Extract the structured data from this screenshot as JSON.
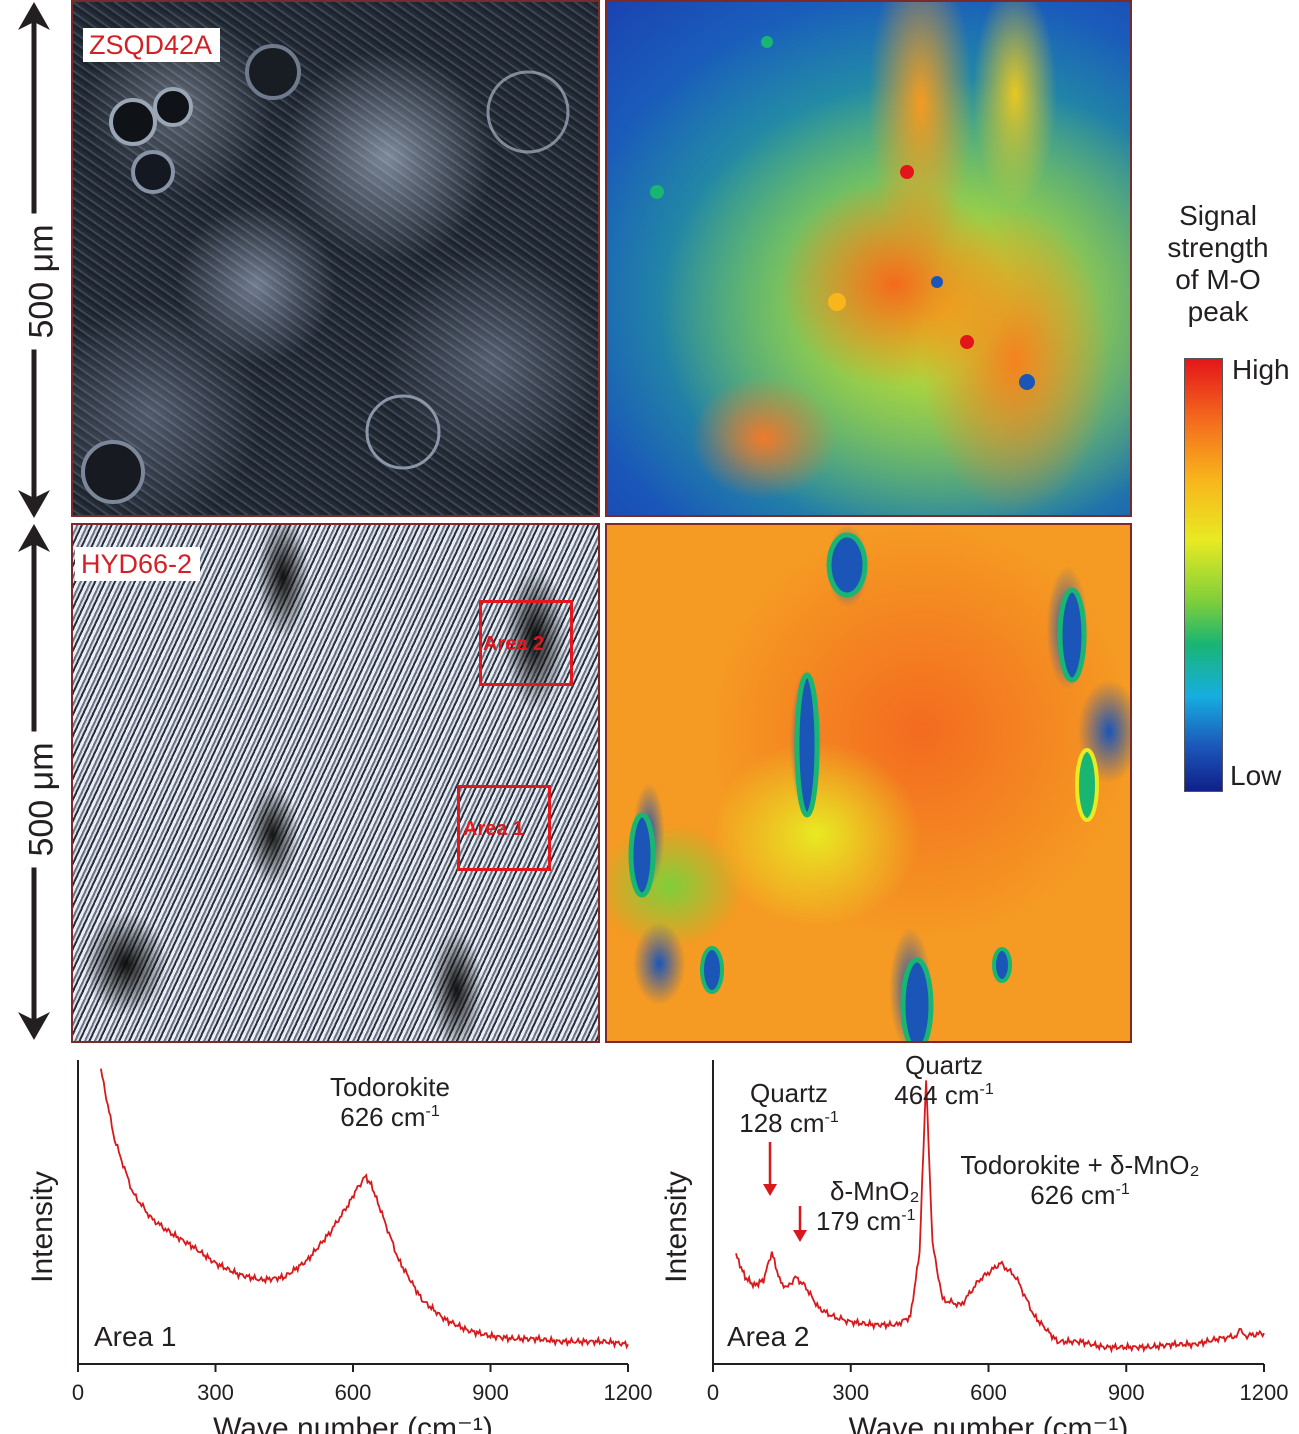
{
  "top_row": {
    "sample_label": "ZSQD42A",
    "scale_label": "500 μm"
  },
  "bottom_row": {
    "sample_label": "HYD66-2",
    "scale_label": "500 μm",
    "area1_label": "Area 1",
    "area2_label": "Area 2"
  },
  "legend": {
    "title_lines": [
      "Signal",
      "strength",
      "of M-O",
      "peak"
    ],
    "high_label": "High",
    "low_label": "Low",
    "colors": [
      "#e4151a",
      "#f46a1d",
      "#f8b51c",
      "#e8ea22",
      "#7fcf3a",
      "#19b573",
      "#16aee0",
      "#1b55b8",
      "#10208a"
    ]
  },
  "chart_data": [
    {
      "type": "line",
      "panel_label": "Area 1",
      "xlabel": "Wave number (cm⁻¹)",
      "ylabel": "Intensity",
      "xlim": [
        0,
        1200
      ],
      "xticks": [
        0,
        300,
        600,
        900,
        1200
      ],
      "line_color": "#d7191c",
      "x": [
        50,
        80,
        120,
        160,
        200,
        250,
        300,
        350,
        400,
        450,
        500,
        550,
        590,
        610,
        626,
        640,
        660,
        700,
        750,
        800,
        850,
        900,
        950,
        1000,
        1050,
        1100,
        1150,
        1200
      ],
      "y": [
        1.0,
        0.75,
        0.56,
        0.47,
        0.42,
        0.37,
        0.31,
        0.27,
        0.25,
        0.26,
        0.32,
        0.42,
        0.52,
        0.58,
        0.62,
        0.59,
        0.5,
        0.32,
        0.18,
        0.11,
        0.07,
        0.05,
        0.04,
        0.04,
        0.03,
        0.03,
        0.03,
        0.02
      ],
      "annotations": [
        {
          "text": "Todorokite",
          "sub": "626 cm",
          "sup": "-1",
          "x": 626
        }
      ]
    },
    {
      "type": "line",
      "panel_label": "Area 2",
      "xlabel": "Wave number (cm⁻¹)",
      "ylabel": "Intensity",
      "xlim": [
        0,
        1200
      ],
      "xticks": [
        0,
        300,
        600,
        900,
        1200
      ],
      "line_color": "#d7191c",
      "x": [
        50,
        70,
        90,
        110,
        128,
        145,
        160,
        179,
        200,
        230,
        260,
        300,
        350,
        400,
        430,
        450,
        464,
        478,
        500,
        540,
        580,
        626,
        660,
        700,
        750,
        800,
        850,
        900,
        950,
        1000,
        1050,
        1100,
        1140,
        1150,
        1160,
        1200
      ],
      "y": [
        0.34,
        0.26,
        0.23,
        0.25,
        0.35,
        0.25,
        0.22,
        0.26,
        0.23,
        0.15,
        0.12,
        0.1,
        0.09,
        0.09,
        0.12,
        0.35,
        0.97,
        0.38,
        0.18,
        0.16,
        0.25,
        0.31,
        0.26,
        0.12,
        0.03,
        0.03,
        0.01,
        0.01,
        0.01,
        0.02,
        0.02,
        0.04,
        0.05,
        0.07,
        0.05,
        0.06
      ],
      "annotations": [
        {
          "text": "Quartz",
          "sub": "128 cm",
          "sup": "-1",
          "x": 128
        },
        {
          "text": "δ-MnO₂",
          "sub": "179 cm",
          "sup": "-1",
          "x": 179
        },
        {
          "text": "Quartz",
          "sub": "464 cm",
          "sup": "-1",
          "x": 464
        },
        {
          "text": "Todorokite + δ-MnO₂",
          "sub": "626 cm",
          "sup": "-1",
          "x": 626
        }
      ]
    }
  ]
}
